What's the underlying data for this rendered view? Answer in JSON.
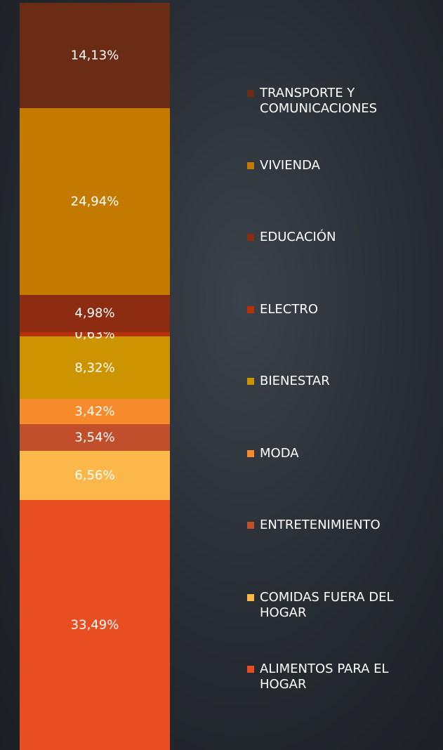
{
  "chart_data": {
    "type": "stacked-bar",
    "series": [
      {
        "name": "ALIMENTOS PARA EL HOGAR",
        "color": "#e84e22",
        "values": [
          33.49
        ],
        "value_labels": [
          "33,49%"
        ]
      },
      {
        "name": "COMIDAS FUERA DEL HOGAR",
        "color": "#fbb74a",
        "values": [
          6.56
        ],
        "value_labels": [
          "6,56%"
        ]
      },
      {
        "name": "ENTRETENIMIENTO",
        "color": "#c24f2c",
        "values": [
          3.54
        ],
        "value_labels": [
          "3,54%"
        ]
      },
      {
        "name": "MODA",
        "color": "#f78a2a",
        "values": [
          3.42
        ],
        "value_labels": [
          "3,42%"
        ]
      },
      {
        "name": "BIENESTAR",
        "color": "#cc9500",
        "values": [
          8.32
        ],
        "value_labels": [
          "8,32%"
        ]
      },
      {
        "name": "ELECTRO",
        "color": "#b8300a",
        "values": [
          0.63
        ],
        "value_labels": [
          "0,63%"
        ]
      },
      {
        "name": "EDUCACIÓN",
        "color": "#8e2c12",
        "values": [
          4.98
        ],
        "value_labels": [
          "4,98%"
        ]
      },
      {
        "name": "VIVIENDA",
        "color": "#c47a00",
        "values": [
          24.94
        ],
        "value_labels": [
          "24,94%"
        ]
      },
      {
        "name": "TRANSPORTE Y COMUNICACIONES",
        "color": "#6b2c16",
        "values": [
          14.13
        ],
        "value_labels": [
          "14,13%"
        ]
      }
    ]
  }
}
